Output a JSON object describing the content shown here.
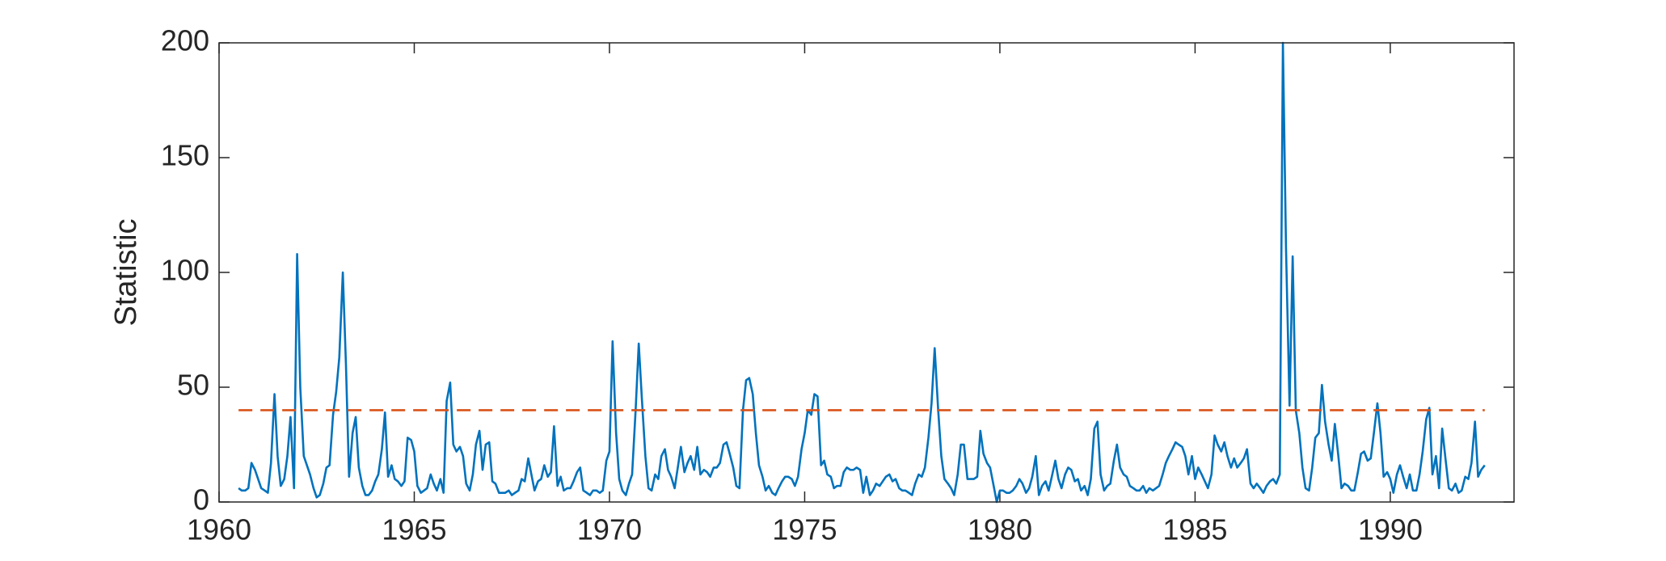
{
  "chart_data": {
    "type": "line",
    "ylabel": "Statistic",
    "xlim": [
      1960,
      1993.17
    ],
    "xticks": [
      1960,
      1965,
      1970,
      1975,
      1980,
      1985,
      1990
    ],
    "ylim": [
      0,
      200
    ],
    "yticks": [
      0,
      50,
      100,
      150,
      200
    ],
    "series": [
      {
        "color": "#0072bd",
        "x": [
          1960.5,
          1960.58,
          1960.67,
          1960.75,
          1960.83,
          1960.92,
          1961,
          1961.08,
          1961.17,
          1961.25,
          1961.33,
          1961.42,
          1961.5,
          1961.58,
          1961.67,
          1961.75,
          1961.83,
          1961.92,
          1962,
          1962.08,
          1962.17,
          1962.25,
          1962.33,
          1962.42,
          1962.5,
          1962.58,
          1962.67,
          1962.75,
          1962.83,
          1962.92,
          1963,
          1963.08,
          1963.17,
          1963.25,
          1963.33,
          1963.42,
          1963.5,
          1963.58,
          1963.67,
          1963.75,
          1963.83,
          1963.92,
          1964,
          1964.08,
          1964.17,
          1964.25,
          1964.33,
          1964.42,
          1964.5,
          1964.58,
          1964.67,
          1964.75,
          1964.83,
          1964.92,
          1965,
          1965.08,
          1965.17,
          1965.25,
          1965.33,
          1965.42,
          1965.5,
          1965.58,
          1965.67,
          1965.75,
          1965.83,
          1965.92,
          1966,
          1966.08,
          1966.17,
          1966.25,
          1966.33,
          1966.42,
          1966.5,
          1966.58,
          1966.67,
          1966.75,
          1966.83,
          1966.92,
          1967,
          1967.08,
          1967.17,
          1967.25,
          1967.33,
          1967.42,
          1967.5,
          1967.58,
          1967.67,
          1967.75,
          1967.83,
          1967.92,
          1968,
          1968.08,
          1968.17,
          1968.25,
          1968.33,
          1968.42,
          1968.5,
          1968.58,
          1968.67,
          1968.75,
          1968.83,
          1968.92,
          1969,
          1969.08,
          1969.17,
          1969.25,
          1969.33,
          1969.42,
          1969.5,
          1969.58,
          1969.67,
          1969.75,
          1969.83,
          1969.92,
          1970,
          1970.08,
          1970.17,
          1970.25,
          1970.33,
          1970.42,
          1970.5,
          1970.58,
          1970.67,
          1970.75,
          1970.83,
          1970.92,
          1971,
          1971.08,
          1971.17,
          1971.25,
          1971.33,
          1971.42,
          1971.5,
          1971.58,
          1971.67,
          1971.75,
          1971.83,
          1971.92,
          1972,
          1972.08,
          1972.17,
          1972.25,
          1972.33,
          1972.42,
          1972.5,
          1972.58,
          1972.67,
          1972.75,
          1972.83,
          1972.92,
          1973,
          1973.08,
          1973.17,
          1973.25,
          1973.33,
          1973.42,
          1973.5,
          1973.58,
          1973.67,
          1973.75,
          1973.83,
          1973.92,
          1974,
          1974.08,
          1974.17,
          1974.25,
          1974.33,
          1974.42,
          1974.5,
          1974.58,
          1974.67,
          1974.75,
          1974.83,
          1974.92,
          1975,
          1975.08,
          1975.17,
          1975.25,
          1975.33,
          1975.42,
          1975.5,
          1975.58,
          1975.67,
          1975.75,
          1975.83,
          1975.92,
          1976,
          1976.08,
          1976.17,
          1976.25,
          1976.33,
          1976.42,
          1976.5,
          1976.58,
          1976.67,
          1976.75,
          1976.83,
          1976.92,
          1977,
          1977.08,
          1977.17,
          1977.25,
          1977.33,
          1977.42,
          1977.5,
          1977.58,
          1977.67,
          1977.75,
          1977.83,
          1977.92,
          1978,
          1978.08,
          1978.17,
          1978.25,
          1978.33,
          1978.42,
          1978.5,
          1978.58,
          1978.67,
          1978.75,
          1978.83,
          1978.92,
          1979,
          1979.08,
          1979.17,
          1979.25,
          1979.33,
          1979.42,
          1979.5,
          1979.58,
          1979.67,
          1979.75,
          1979.83,
          1979.92,
          1980,
          1980.08,
          1980.17,
          1980.25,
          1980.33,
          1980.42,
          1980.5,
          1980.58,
          1980.67,
          1980.75,
          1980.83,
          1980.92,
          1981,
          1981.08,
          1981.17,
          1981.25,
          1981.33,
          1981.42,
          1981.5,
          1981.58,
          1981.67,
          1981.75,
          1981.83,
          1981.92,
          1982,
          1982.08,
          1982.17,
          1982.25,
          1982.33,
          1982.42,
          1982.5,
          1982.58,
          1982.67,
          1982.75,
          1982.83,
          1982.92,
          1983,
          1983.08,
          1983.17,
          1983.25,
          1983.33,
          1983.42,
          1983.5,
          1983.58,
          1983.67,
          1983.75,
          1983.83,
          1983.92,
          1984,
          1984.08,
          1984.17,
          1984.25,
          1984.33,
          1984.42,
          1984.5,
          1984.58,
          1984.67,
          1984.75,
          1984.83,
          1984.92,
          1985,
          1985.08,
          1985.17,
          1985.25,
          1985.33,
          1985.42,
          1985.5,
          1985.58,
          1985.67,
          1985.75,
          1985.83,
          1985.92,
          1986,
          1986.08,
          1986.17,
          1986.25,
          1986.33,
          1986.42,
          1986.5,
          1986.58,
          1986.67,
          1986.75,
          1986.83,
          1986.92,
          1987,
          1987.08,
          1987.17,
          1987.25,
          1987.33,
          1987.42,
          1987.5,
          1987.58,
          1987.67,
          1987.75,
          1987.83,
          1987.92,
          1988,
          1988.08,
          1988.17,
          1988.25,
          1988.33,
          1988.42,
          1988.5,
          1988.58,
          1988.67,
          1988.75,
          1988.83,
          1988.92,
          1989,
          1989.08,
          1989.17,
          1989.25,
          1989.33,
          1989.42,
          1989.5,
          1989.58,
          1989.67,
          1989.75,
          1989.83,
          1989.92,
          1990,
          1990.08,
          1990.17,
          1990.25,
          1990.33,
          1990.42,
          1990.5,
          1990.58,
          1990.67,
          1990.75,
          1990.83,
          1990.92,
          1991,
          1991.08,
          1991.17,
          1991.25,
          1991.33,
          1991.42,
          1991.5,
          1991.58,
          1991.67,
          1991.75,
          1991.83,
          1991.92,
          1992,
          1992.08,
          1992.17,
          1992.25,
          1992.33,
          1992.42
        ],
        "values": [
          6,
          5,
          5,
          6,
          17,
          14,
          10,
          6,
          5,
          4,
          17,
          47,
          20,
          7,
          10,
          20,
          37,
          6,
          108,
          50,
          20,
          16,
          12,
          6,
          2,
          3,
          8,
          15,
          16,
          38,
          48,
          63,
          100,
          60,
          11,
          30,
          37,
          15,
          7,
          3,
          3,
          5,
          9,
          12,
          23,
          39,
          11,
          16,
          10,
          9,
          7,
          9,
          28,
          27,
          22,
          7,
          4,
          5,
          6,
          12,
          8,
          5,
          10,
          4,
          44,
          52,
          25,
          22,
          24,
          20,
          8,
          5,
          12,
          25,
          31,
          14,
          25,
          26,
          9,
          8,
          4,
          4,
          4,
          5,
          3,
          4,
          5,
          10,
          9,
          19,
          12,
          5,
          9,
          10,
          16,
          11,
          13,
          33,
          7,
          11,
          5,
          6,
          6,
          9,
          13,
          15,
          5,
          4,
          3,
          5,
          5,
          4,
          5,
          18,
          22,
          70,
          30,
          10,
          5,
          3,
          8,
          12,
          40,
          69,
          45,
          20,
          6,
          5,
          12,
          10,
          20,
          23,
          14,
          11,
          6,
          15,
          24,
          13,
          17,
          20,
          14,
          24,
          12,
          14,
          13,
          11,
          15,
          15,
          17,
          25,
          26,
          21,
          15,
          7,
          6,
          40,
          53,
          54,
          47,
          30,
          16,
          11,
          5,
          7,
          4,
          3,
          6,
          9,
          11,
          11,
          10,
          7,
          11,
          23,
          30,
          40,
          38,
          47,
          46,
          16,
          18,
          12,
          11,
          6,
          7,
          7,
          13,
          15,
          14,
          14,
          15,
          14,
          4,
          11,
          3,
          5,
          8,
          7,
          9,
          11,
          12,
          9,
          10,
          6,
          5,
          5,
          4,
          3,
          8,
          12,
          11,
          15,
          28,
          43,
          67,
          40,
          20,
          10,
          8,
          6,
          3,
          12,
          25,
          25,
          10,
          10,
          10,
          11,
          31,
          21,
          17,
          15,
          8,
          0,
          5,
          5,
          4,
          4,
          5,
          7,
          10,
          8,
          4,
          6,
          11,
          20,
          3,
          7,
          9,
          5,
          11,
          18,
          10,
          6,
          12,
          15,
          14,
          9,
          10,
          5,
          7,
          3,
          10,
          32,
          35,
          12,
          5,
          7,
          8,
          18,
          25,
          15,
          12,
          11,
          7,
          6,
          5,
          5,
          7,
          4,
          6,
          5,
          6,
          7,
          12,
          17,
          20,
          23,
          26,
          25,
          24,
          20,
          12,
          20,
          10,
          15,
          12,
          9,
          6,
          12,
          29,
          25,
          22,
          26,
          20,
          15,
          19,
          15,
          17,
          19,
          23,
          8,
          6,
          8,
          6,
          4,
          7,
          9,
          10,
          8,
          12,
          200,
          110,
          42,
          107,
          40,
          30,
          15,
          6,
          5,
          15,
          28,
          30,
          51,
          35,
          25,
          18,
          34,
          20,
          6,
          8,
          7,
          5,
          5,
          13,
          21,
          22,
          18,
          19,
          30,
          43,
          30,
          11,
          13,
          10,
          4,
          12,
          16,
          11,
          6,
          12,
          5,
          5,
          12,
          22,
          36,
          41,
          12,
          20,
          6,
          32,
          18,
          6,
          5,
          8,
          4,
          5,
          11,
          10,
          17,
          35,
          11,
          14,
          16
        ]
      },
      {
        "color": "#d95319",
        "dash": true,
        "x": [
          1960.5,
          1992.42
        ],
        "values": [
          40,
          40
        ]
      }
    ]
  }
}
